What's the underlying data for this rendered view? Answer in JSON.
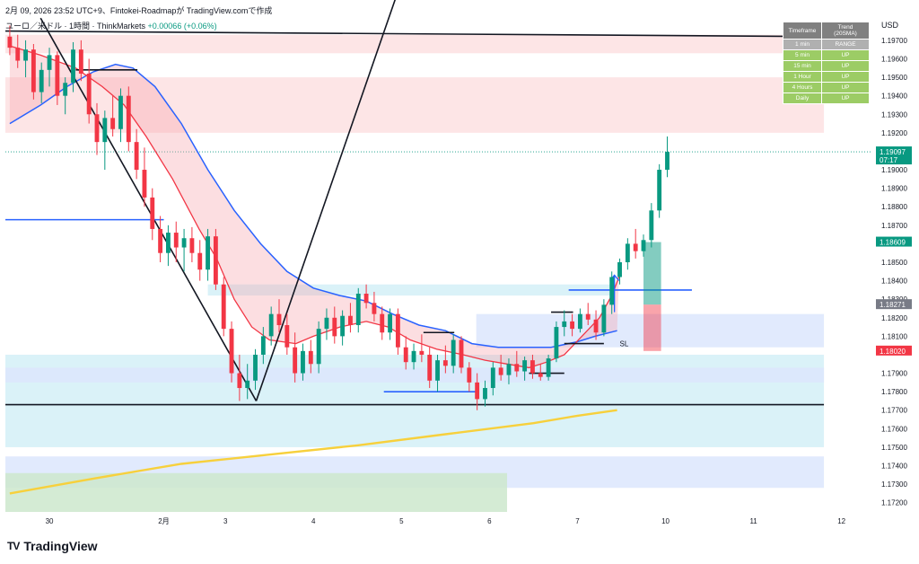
{
  "header": {
    "timestamp": "2月 09, 2026 23:52 UTC+9、Fintokei-Roadmapが TradingView.comで作成",
    "symbol_title": "ユーロ／米ドル · 1時間 · ThinkMarkets",
    "change": "+0.00066 (+0.06%)"
  },
  "axis": {
    "currency": "USD"
  },
  "brand": {
    "name": "TradingView",
    "logo_text": "TV"
  },
  "trend_table": {
    "headers": [
      "Timeframe",
      "Trend (20SMA)"
    ],
    "rows": [
      {
        "tf": "1 min",
        "trend": "RANGE"
      },
      {
        "tf": "5 min",
        "trend": "UP"
      },
      {
        "tf": "15 min",
        "trend": "UP"
      },
      {
        "tf": "1 Hour",
        "trend": "UP"
      },
      {
        "tf": "4 Hours",
        "trend": "UP"
      },
      {
        "tf": "Daily",
        "trend": "UP"
      }
    ]
  },
  "colors": {
    "up": "#089981",
    "down": "#f23645",
    "ma_fast": "#f23645",
    "ma_slow": "#2962ff",
    "ma_long": "#f7d03c",
    "zone_red": "#fde0e2",
    "zone_cyan": "#d4f0f7",
    "zone_blue": "#dce6fd",
    "zone_green": "#cce8cc"
  },
  "chart_data": {
    "type": "candlestick",
    "symbol": "EUR/USD",
    "interval": "1h",
    "ylim": [
      1.1715,
      1.1985
    ],
    "y_ticks": [
      1.172,
      1.173,
      1.174,
      1.175,
      1.176,
      1.177,
      1.178,
      1.179,
      1.181,
      1.182,
      1.183,
      1.184,
      1.185,
      1.187,
      1.188,
      1.189,
      1.19,
      1.192,
      1.193,
      1.194,
      1.195,
      1.196,
      1.197
    ],
    "x_ticks": [
      {
        "label": "30",
        "day": 0
      },
      {
        "label": "2月",
        "day": 1.3
      },
      {
        "label": "3",
        "day": 2
      },
      {
        "label": "4",
        "day": 3
      },
      {
        "label": "5",
        "day": 4
      },
      {
        "label": "6",
        "day": 5
      },
      {
        "label": "7",
        "day": 6
      },
      {
        "label": "10",
        "day": 7
      },
      {
        "label": "11",
        "day": 8
      },
      {
        "label": "12",
        "day": 9
      }
    ],
    "xlim": [
      -0.5,
      9.35
    ],
    "price_labels": [
      {
        "value": 1.19097,
        "text": "1.19097",
        "sub": "07:17",
        "color": "#089981"
      },
      {
        "value": 1.18609,
        "text": "1.18609",
        "color": "#089981"
      },
      {
        "value": 1.18271,
        "text": "1.18271",
        "color": "#787b86"
      },
      {
        "value": 1.1802,
        "text": "1.18020",
        "color": "#f23645"
      }
    ],
    "current_price": 1.19097,
    "zones": [
      {
        "x0": -0.5,
        "x1": 8.8,
        "y0": 1.1963,
        "y1": 1.1973,
        "color": "zone_red"
      },
      {
        "x0": -0.5,
        "x1": 8.8,
        "y0": 1.192,
        "y1": 1.195,
        "color": "zone_red"
      },
      {
        "x0": -0.5,
        "x1": 8.8,
        "y0": 1.175,
        "y1": 1.18,
        "color": "zone_cyan"
      },
      {
        "x0": -0.5,
        "x1": 8.8,
        "y0": 1.1785,
        "y1": 1.1793,
        "color": "zone_blue"
      },
      {
        "x0": -0.5,
        "x1": 8.8,
        "y0": 1.1728,
        "y1": 1.1745,
        "color": "zone_blue"
      },
      {
        "x0": -0.5,
        "x1": 5.2,
        "y0": 1.1715,
        "y1": 1.1736,
        "color": "zone_green"
      },
      {
        "x0": 4.85,
        "x1": 8.8,
        "y0": 1.1804,
        "y1": 1.1822,
        "color": "zone_blue"
      },
      {
        "x0": 1.8,
        "x1": 6.4,
        "y0": 1.1832,
        "y1": 1.1838,
        "color": "zone_cyan"
      }
    ],
    "lines": [
      {
        "from": [
          -0.5,
          1.1975
        ],
        "to": [
          8.8,
          1.1972
        ],
        "color": "#131722",
        "width": 1.6
      },
      {
        "from": [
          -0.5,
          1.1773
        ],
        "to": [
          8.8,
          1.1773
        ],
        "color": "#131722",
        "width": 1.6
      },
      {
        "from": [
          -0.1,
          1.1982
        ],
        "to": [
          2.35,
          1.1775
        ],
        "color": "#131722",
        "width": 1.6
      },
      {
        "from": [
          2.35,
          1.1775
        ],
        "to": [
          3.95,
          1.1995
        ],
        "color": "#131722",
        "width": 1.6
      },
      {
        "from": [
          0.3,
          1.1954
        ],
        "to": [
          1.0,
          1.1954
        ],
        "color": "#131722",
        "width": 1.6
      },
      {
        "from": [
          -0.5,
          1.1873
        ],
        "to": [
          1.3,
          1.1873
        ],
        "color": "#2962ff",
        "width": 1.6
      },
      {
        "from": [
          3.8,
          1.178
        ],
        "to": [
          4.85,
          1.178
        ],
        "color": "#2962ff",
        "width": 1.6
      },
      {
        "from": [
          5.9,
          1.1835
        ],
        "to": [
          7.3,
          1.1835
        ],
        "color": "#2962ff",
        "width": 1.6
      },
      {
        "from": [
          4.25,
          1.1812
        ],
        "to": [
          4.6,
          1.1812
        ],
        "color": "#131722",
        "width": 1.6
      },
      {
        "from": [
          5.45,
          1.179
        ],
        "to": [
          5.85,
          1.179
        ],
        "color": "#131722",
        "width": 1.6
      },
      {
        "from": [
          5.7,
          1.1823
        ],
        "to": [
          5.95,
          1.1823
        ],
        "color": "#131722",
        "width": 1.6
      },
      {
        "from": [
          5.85,
          1.1806
        ],
        "to": [
          6.3,
          1.1806
        ],
        "color": "#131722",
        "width": 1.6
      }
    ],
    "annotations": [
      {
        "text": "SL",
        "x": 6.48,
        "y": 1.1806
      }
    ],
    "arrow": {
      "x": 6.42,
      "from": 1.1823,
      "to": 1.1843,
      "color": "#2962ff"
    },
    "position": {
      "x0": 6.75,
      "x1": 6.95,
      "entry": 1.18271,
      "target": 1.18609,
      "stop": 1.1802
    },
    "ma_fast": [
      [
        -0.45,
        1.1967
      ],
      [
        -0.1,
        1.1962
      ],
      [
        0.3,
        1.1955
      ],
      [
        0.6,
        1.1945
      ],
      [
        0.85,
        1.1935
      ],
      [
        1.1,
        1.1918
      ],
      [
        1.4,
        1.1895
      ],
      [
        1.7,
        1.1868
      ],
      [
        1.9,
        1.1852
      ],
      [
        2.1,
        1.183
      ],
      [
        2.3,
        1.1815
      ],
      [
        2.5,
        1.1808
      ],
      [
        2.8,
        1.1806
      ],
      [
        3.0,
        1.181
      ],
      [
        3.3,
        1.1815
      ],
      [
        3.6,
        1.1818
      ],
      [
        3.85,
        1.1815
      ],
      [
        4.1,
        1.1808
      ],
      [
        4.4,
        1.1803
      ],
      [
        4.7,
        1.18
      ],
      [
        4.95,
        1.1797
      ],
      [
        5.2,
        1.1795
      ],
      [
        5.45,
        1.1793
      ],
      [
        5.65,
        1.1796
      ],
      [
        5.85,
        1.18
      ],
      [
        6.05,
        1.181
      ],
      [
        6.25,
        1.182
      ],
      [
        6.4,
        1.1833
      ],
      [
        6.47,
        1.1842
      ]
    ],
    "ma_slow": [
      [
        -0.45,
        1.1925
      ],
      [
        -0.1,
        1.1935
      ],
      [
        0.2,
        1.1945
      ],
      [
        0.5,
        1.1953
      ],
      [
        0.75,
        1.1957
      ],
      [
        0.95,
        1.1955
      ],
      [
        1.2,
        1.1945
      ],
      [
        1.5,
        1.1925
      ],
      [
        1.8,
        1.19
      ],
      [
        2.1,
        1.1878
      ],
      [
        2.4,
        1.186
      ],
      [
        2.7,
        1.1845
      ],
      [
        3.0,
        1.1836
      ],
      [
        3.3,
        1.1832
      ],
      [
        3.6,
        1.1829
      ],
      [
        3.9,
        1.1822
      ],
      [
        4.2,
        1.1816
      ],
      [
        4.5,
        1.1813
      ],
      [
        4.8,
        1.1806
      ],
      [
        5.1,
        1.1804
      ],
      [
        5.4,
        1.1804
      ],
      [
        5.7,
        1.1804
      ],
      [
        6.0,
        1.1807
      ],
      [
        6.2,
        1.181
      ],
      [
        6.45,
        1.1813
      ]
    ],
    "ma_long": [
      [
        -0.45,
        1.1725
      ],
      [
        0.5,
        1.1733
      ],
      [
        1.5,
        1.1741
      ],
      [
        2.5,
        1.1746
      ],
      [
        3.5,
        1.1751
      ],
      [
        4.5,
        1.1757
      ],
      [
        5.5,
        1.1763
      ],
      [
        6.0,
        1.1767
      ],
      [
        6.45,
        1.177
      ]
    ],
    "candles": [
      {
        "x": -0.45,
        "o": 1.1972,
        "h": 1.1978,
        "l": 1.1962,
        "c": 1.1966
      },
      {
        "x": -0.36,
        "o": 1.1966,
        "h": 1.1973,
        "l": 1.1955,
        "c": 1.1959
      },
      {
        "x": -0.27,
        "o": 1.1959,
        "h": 1.197,
        "l": 1.195,
        "c": 1.1965
      },
      {
        "x": -0.18,
        "o": 1.1965,
        "h": 1.1968,
        "l": 1.1938,
        "c": 1.1942
      },
      {
        "x": -0.09,
        "o": 1.1942,
        "h": 1.1958,
        "l": 1.1936,
        "c": 1.1954
      },
      {
        "x": 0.0,
        "o": 1.1954,
        "h": 1.1966,
        "l": 1.1945,
        "c": 1.1962
      },
      {
        "x": 0.09,
        "o": 1.1962,
        "h": 1.1964,
        "l": 1.1935,
        "c": 1.194
      },
      {
        "x": 0.18,
        "o": 1.194,
        "h": 1.195,
        "l": 1.193,
        "c": 1.1947
      },
      {
        "x": 0.27,
        "o": 1.1947,
        "h": 1.1969,
        "l": 1.1942,
        "c": 1.1965
      },
      {
        "x": 0.36,
        "o": 1.1965,
        "h": 1.197,
        "l": 1.1948,
        "c": 1.1952
      },
      {
        "x": 0.45,
        "o": 1.1952,
        "h": 1.196,
        "l": 1.1925,
        "c": 1.193
      },
      {
        "x": 0.54,
        "o": 1.193,
        "h": 1.1936,
        "l": 1.1908,
        "c": 1.1915
      },
      {
        "x": 0.63,
        "o": 1.1915,
        "h": 1.1932,
        "l": 1.19,
        "c": 1.1928
      },
      {
        "x": 0.72,
        "o": 1.1928,
        "h": 1.194,
        "l": 1.1918,
        "c": 1.1922
      },
      {
        "x": 0.81,
        "o": 1.1922,
        "h": 1.1944,
        "l": 1.1915,
        "c": 1.194
      },
      {
        "x": 0.9,
        "o": 1.194,
        "h": 1.1945,
        "l": 1.191,
        "c": 1.1915
      },
      {
        "x": 0.99,
        "o": 1.1915,
        "h": 1.1922,
        "l": 1.1895,
        "c": 1.19
      },
      {
        "x": 1.08,
        "o": 1.19,
        "h": 1.1912,
        "l": 1.188,
        "c": 1.1885
      },
      {
        "x": 1.17,
        "o": 1.1885,
        "h": 1.189,
        "l": 1.1862,
        "c": 1.1868
      },
      {
        "x": 1.26,
        "o": 1.1868,
        "h": 1.1875,
        "l": 1.185,
        "c": 1.1855
      },
      {
        "x": 1.35,
        "o": 1.1855,
        "h": 1.187,
        "l": 1.1848,
        "c": 1.1866
      },
      {
        "x": 1.44,
        "o": 1.1866,
        "h": 1.1872,
        "l": 1.185,
        "c": 1.1858
      },
      {
        "x": 1.53,
        "o": 1.1858,
        "h": 1.1868,
        "l": 1.1845,
        "c": 1.1863
      },
      {
        "x": 1.62,
        "o": 1.1863,
        "h": 1.1869,
        "l": 1.185,
        "c": 1.1855
      },
      {
        "x": 1.71,
        "o": 1.1855,
        "h": 1.1862,
        "l": 1.184,
        "c": 1.1846
      },
      {
        "x": 1.8,
        "o": 1.1846,
        "h": 1.1868,
        "l": 1.184,
        "c": 1.1864
      },
      {
        "x": 1.89,
        "o": 1.1864,
        "h": 1.1868,
        "l": 1.1835,
        "c": 1.1838
      },
      {
        "x": 1.98,
        "o": 1.1838,
        "h": 1.1842,
        "l": 1.181,
        "c": 1.1814
      },
      {
        "x": 2.07,
        "o": 1.1814,
        "h": 1.1818,
        "l": 1.1785,
        "c": 1.179
      },
      {
        "x": 2.16,
        "o": 1.179,
        "h": 1.18,
        "l": 1.1775,
        "c": 1.1782
      },
      {
        "x": 2.25,
        "o": 1.1782,
        "h": 1.1795,
        "l": 1.1776,
        "c": 1.1786
      },
      {
        "x": 2.34,
        "o": 1.1786,
        "h": 1.1803,
        "l": 1.1781,
        "c": 1.18
      },
      {
        "x": 2.43,
        "o": 1.18,
        "h": 1.1815,
        "l": 1.1795,
        "c": 1.181
      },
      {
        "x": 2.52,
        "o": 1.181,
        "h": 1.1826,
        "l": 1.1805,
        "c": 1.1822
      },
      {
        "x": 2.61,
        "o": 1.1822,
        "h": 1.183,
        "l": 1.1812,
        "c": 1.1816
      },
      {
        "x": 2.7,
        "o": 1.1816,
        "h": 1.1822,
        "l": 1.18,
        "c": 1.1804
      },
      {
        "x": 2.79,
        "o": 1.1804,
        "h": 1.1812,
        "l": 1.1785,
        "c": 1.179
      },
      {
        "x": 2.88,
        "o": 1.179,
        "h": 1.1806,
        "l": 1.1786,
        "c": 1.1802
      },
      {
        "x": 2.97,
        "o": 1.1802,
        "h": 1.1808,
        "l": 1.179,
        "c": 1.1795
      },
      {
        "x": 3.06,
        "o": 1.1795,
        "h": 1.1818,
        "l": 1.179,
        "c": 1.1814
      },
      {
        "x": 3.15,
        "o": 1.1814,
        "h": 1.1825,
        "l": 1.1808,
        "c": 1.182
      },
      {
        "x": 3.24,
        "o": 1.182,
        "h": 1.1826,
        "l": 1.1806,
        "c": 1.181
      },
      {
        "x": 3.33,
        "o": 1.181,
        "h": 1.1824,
        "l": 1.1805,
        "c": 1.1821
      },
      {
        "x": 3.42,
        "o": 1.1821,
        "h": 1.1828,
        "l": 1.1812,
        "c": 1.1816
      },
      {
        "x": 3.51,
        "o": 1.1816,
        "h": 1.1836,
        "l": 1.1812,
        "c": 1.1833
      },
      {
        "x": 3.6,
        "o": 1.1833,
        "h": 1.1838,
        "l": 1.1825,
        "c": 1.1828
      },
      {
        "x": 3.69,
        "o": 1.1828,
        "h": 1.1834,
        "l": 1.1818,
        "c": 1.1822
      },
      {
        "x": 3.78,
        "o": 1.1822,
        "h": 1.1826,
        "l": 1.1808,
        "c": 1.1812
      },
      {
        "x": 3.87,
        "o": 1.1812,
        "h": 1.1825,
        "l": 1.1808,
        "c": 1.1822
      },
      {
        "x": 3.96,
        "o": 1.1822,
        "h": 1.1825,
        "l": 1.18,
        "c": 1.1804
      },
      {
        "x": 4.05,
        "o": 1.1804,
        "h": 1.181,
        "l": 1.1792,
        "c": 1.1796
      },
      {
        "x": 4.14,
        "o": 1.1796,
        "h": 1.1806,
        "l": 1.1792,
        "c": 1.1802
      },
      {
        "x": 4.23,
        "o": 1.1802,
        "h": 1.1811,
        "l": 1.1796,
        "c": 1.18
      },
      {
        "x": 4.32,
        "o": 1.18,
        "h": 1.1804,
        "l": 1.1782,
        "c": 1.1786
      },
      {
        "x": 4.41,
        "o": 1.1786,
        "h": 1.18,
        "l": 1.178,
        "c": 1.1797
      },
      {
        "x": 4.5,
        "o": 1.1797,
        "h": 1.1805,
        "l": 1.179,
        "c": 1.1794
      },
      {
        "x": 4.59,
        "o": 1.1794,
        "h": 1.1811,
        "l": 1.179,
        "c": 1.1808
      },
      {
        "x": 4.68,
        "o": 1.1808,
        "h": 1.181,
        "l": 1.179,
        "c": 1.1793
      },
      {
        "x": 4.77,
        "o": 1.1793,
        "h": 1.1796,
        "l": 1.178,
        "c": 1.1785
      },
      {
        "x": 4.86,
        "o": 1.1785,
        "h": 1.179,
        "l": 1.177,
        "c": 1.1776
      },
      {
        "x": 4.95,
        "o": 1.1776,
        "h": 1.1786,
        "l": 1.1772,
        "c": 1.1782
      },
      {
        "x": 5.04,
        "o": 1.1782,
        "h": 1.1796,
        "l": 1.1778,
        "c": 1.1793
      },
      {
        "x": 5.13,
        "o": 1.1793,
        "h": 1.18,
        "l": 1.1786,
        "c": 1.1789
      },
      {
        "x": 5.22,
        "o": 1.1789,
        "h": 1.1798,
        "l": 1.1784,
        "c": 1.1795
      },
      {
        "x": 5.31,
        "o": 1.1795,
        "h": 1.1802,
        "l": 1.1788,
        "c": 1.1791
      },
      {
        "x": 5.4,
        "o": 1.1791,
        "h": 1.1799,
        "l": 1.1786,
        "c": 1.1797
      },
      {
        "x": 5.49,
        "o": 1.1797,
        "h": 1.18,
        "l": 1.1787,
        "c": 1.179
      },
      {
        "x": 5.58,
        "o": 1.179,
        "h": 1.1795,
        "l": 1.1786,
        "c": 1.1788
      },
      {
        "x": 5.67,
        "o": 1.1788,
        "h": 1.18,
        "l": 1.1786,
        "c": 1.1798
      },
      {
        "x": 5.76,
        "o": 1.1798,
        "h": 1.1818,
        "l": 1.1796,
        "c": 1.1815
      },
      {
        "x": 5.85,
        "o": 1.1815,
        "h": 1.1824,
        "l": 1.181,
        "c": 1.1818
      },
      {
        "x": 5.94,
        "o": 1.1818,
        "h": 1.1822,
        "l": 1.181,
        "c": 1.1814
      },
      {
        "x": 6.03,
        "o": 1.1814,
        "h": 1.1825,
        "l": 1.1812,
        "c": 1.1822
      },
      {
        "x": 6.12,
        "o": 1.1822,
        "h": 1.1828,
        "l": 1.1816,
        "c": 1.1819
      },
      {
        "x": 6.21,
        "o": 1.1819,
        "h": 1.1824,
        "l": 1.1808,
        "c": 1.1812
      },
      {
        "x": 6.3,
        "o": 1.1812,
        "h": 1.183,
        "l": 1.181,
        "c": 1.1827
      },
      {
        "x": 6.39,
        "o": 1.1827,
        "h": 1.1845,
        "l": 1.1822,
        "c": 1.1842
      },
      {
        "x": 6.48,
        "o": 1.1842,
        "h": 1.1852,
        "l": 1.1838,
        "c": 1.185
      },
      {
        "x": 6.57,
        "o": 1.185,
        "h": 1.1863,
        "l": 1.1846,
        "c": 1.186
      },
      {
        "x": 6.66,
        "o": 1.186,
        "h": 1.1868,
        "l": 1.1852,
        "c": 1.1856
      },
      {
        "x": 6.75,
        "o": 1.1856,
        "h": 1.1865,
        "l": 1.1853,
        "c": 1.1862
      },
      {
        "x": 6.84,
        "o": 1.1862,
        "h": 1.1882,
        "l": 1.1858,
        "c": 1.1878
      },
      {
        "x": 6.93,
        "o": 1.1878,
        "h": 1.1903,
        "l": 1.1874,
        "c": 1.19
      },
      {
        "x": 7.02,
        "o": 1.19,
        "h": 1.1918,
        "l": 1.1896,
        "c": 1.19097
      }
    ]
  }
}
